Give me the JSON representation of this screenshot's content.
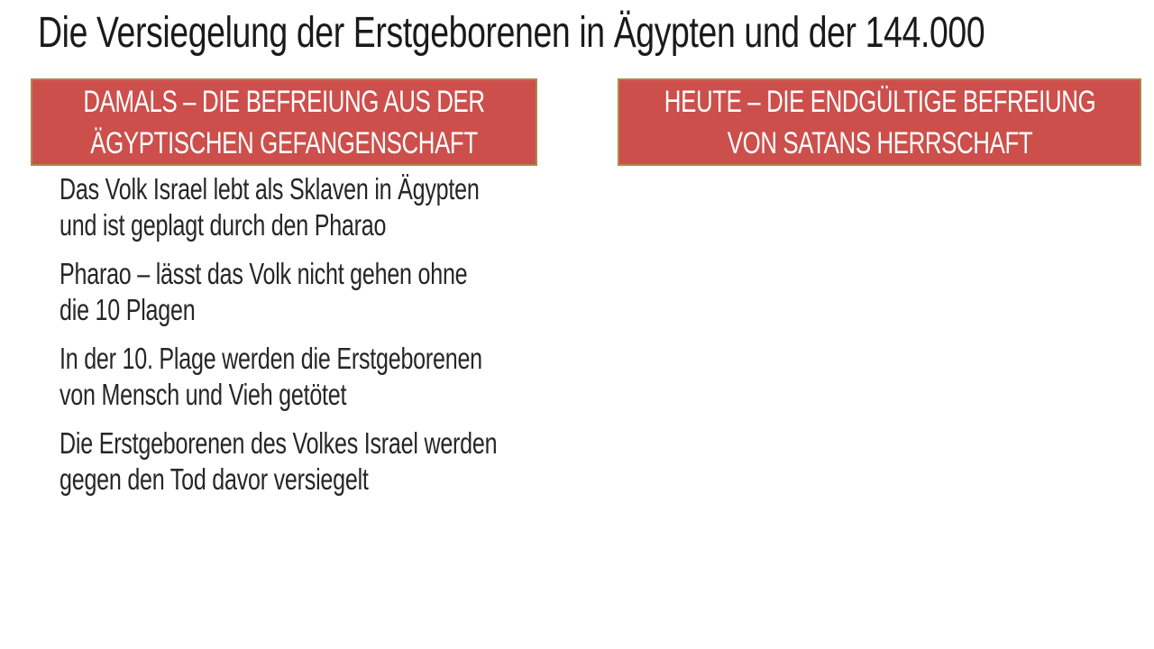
{
  "slide": {
    "title": "Die Versiegelung der Erstgeborenen in Ägypten und der 144.000",
    "colors": {
      "header_box_fill": "#cc4f4b",
      "header_box_border": "#b1874b",
      "header_text": "#ffffff",
      "title_text": "#1a1a1a",
      "body_text": "#262626",
      "background": "#ffffff"
    },
    "columns": [
      {
        "header": "DAMALS – DIE BEFREIUNG AUS DER ÄGYPTISCHEN GEFANGENSCHAFT",
        "items": [
          "Das Volk Israel lebt als Sklaven in Ägypten und ist geplagt durch den Pharao",
          "Pharao – lässt das Volk nicht gehen ohne die 10 Plagen",
          "In der 10. Plage werden die Erstgeborenen von Mensch und Vieh getötet",
          "Die Erstgeborenen des Volkes Israel werden gegen den Tod davor versiegelt"
        ]
      },
      {
        "header": "HEUTE – DIE ENDGÜLTIGE BEFREIUNG VON SATANS HERRSCHAFT",
        "items": []
      }
    ]
  }
}
